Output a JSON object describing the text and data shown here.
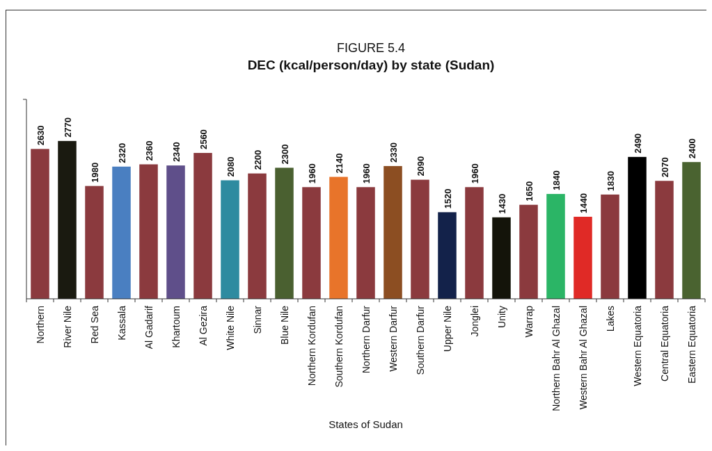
{
  "chart_data": {
    "type": "bar",
    "title": "FIGURE 5.4",
    "subtitle": "DEC (kcal/person/day) by state (Sudan)",
    "xlabel": "States of Sudan",
    "categories": [
      "Northern",
      "River Nile",
      "Red Sea",
      "Kassala",
      "Al Gadarif",
      "Khartoum",
      "Al Gezira",
      "White Nile",
      "Sinnar",
      "Blue Nile",
      "Northern Kordufan",
      "Southern Kordufan",
      "Northern Darfur",
      "Western Darfur",
      "Southern Darfur",
      "Upper Nile",
      "Jonglei",
      "Unity",
      "Warrap",
      "Northern Bahr Al Ghazal",
      "Western Bahr Al Ghazal",
      "Lakes",
      "Western Equatoria",
      "Central Equatoria",
      "Eastern Equatoria"
    ],
    "values": [
      2630,
      2770,
      1980,
      2320,
      2360,
      2340,
      2560,
      2080,
      2200,
      2300,
      1960,
      2140,
      1960,
      2330,
      2090,
      1520,
      1960,
      1430,
      1650,
      1840,
      1440,
      1830,
      2490,
      2070,
      2400
    ],
    "colors": [
      "#8b3a3e",
      "#1a1a10",
      "#8b3a3e",
      "#4a7fc1",
      "#8b3a3e",
      "#5f4f8a",
      "#8b3a3e",
      "#2e8ba0",
      "#8b3a3e",
      "#4a6030",
      "#8b3a3e",
      "#e8742a",
      "#8b3a3e",
      "#8c4e22",
      "#8b3a3e",
      "#13224a",
      "#8b3a3e",
      "#14140a",
      "#8b3a3e",
      "#2bb566",
      "#e02a26",
      "#8b3a3e",
      "#000000",
      "#8b3a3e",
      "#4a6330"
    ],
    "ylim": [
      0,
      3500
    ],
    "tick_labels": "x",
    "data_labels": true
  }
}
